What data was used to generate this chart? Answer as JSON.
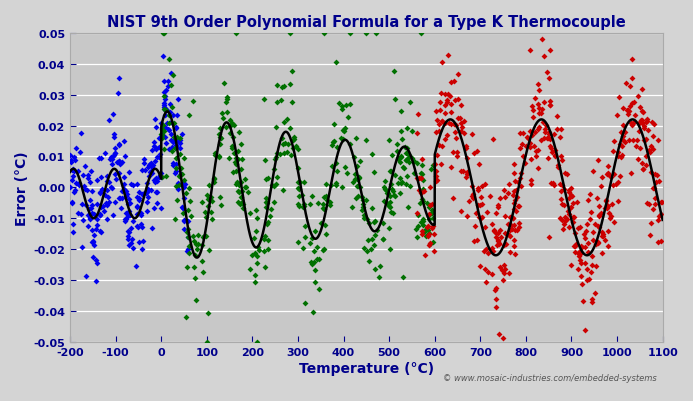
{
  "title": "NIST 9th Order Polynomial Formula for a Type K Thermocouple",
  "xlabel": "Temperature (°C)",
  "ylabel": "Error (°C)",
  "xlim": [
    -200,
    1100
  ],
  "ylim": [
    -0.05,
    0.05
  ],
  "xticks": [
    -200,
    -100,
    0,
    100,
    200,
    300,
    400,
    500,
    600,
    700,
    800,
    900,
    1000,
    1100
  ],
  "yticks": [
    -0.05,
    -0.04,
    -0.03,
    -0.02,
    -0.01,
    0.0,
    0.01,
    0.02,
    0.03,
    0.04,
    0.05
  ],
  "bg_color": "#d4d4d4",
  "plot_bg_color": "#c8c8c8",
  "title_color": "#00008B",
  "axis_label_color": "#00008B",
  "tick_label_color": "#00008B",
  "scatter_blue_color": "#0000EE",
  "scatter_green_color": "#007000",
  "scatter_red_color": "#CC0000",
  "line_color": "#000000",
  "watermark": "© www.mosaic-industries.com/embedded-systems",
  "watermark_color": "#555555"
}
